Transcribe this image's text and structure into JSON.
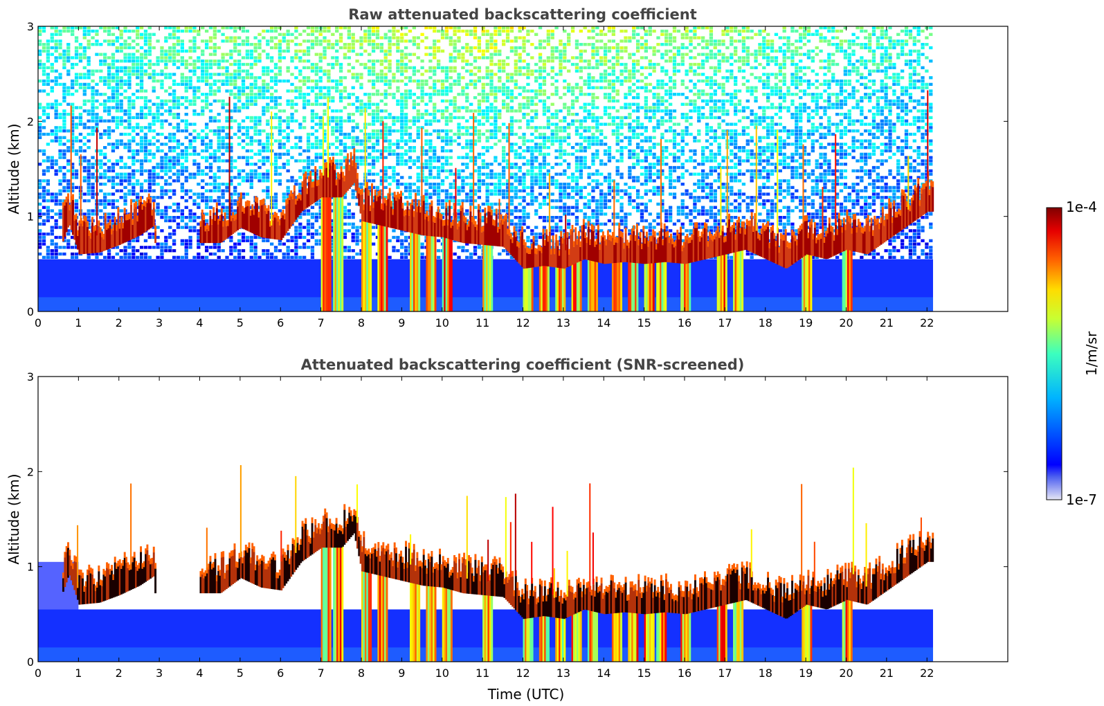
{
  "chart_data": [
    {
      "type": "heatmap",
      "title": "Raw attenuated backscattering coefficient",
      "xlabel": "",
      "ylabel": "Altitude (km)",
      "xlim": [
        0,
        24
      ],
      "ylim": [
        0,
        3
      ],
      "x_ticks": [
        "0",
        "1",
        "2",
        "3",
        "4",
        "5",
        "6",
        "7",
        "8",
        "9",
        "10",
        "11",
        "12",
        "13",
        "14",
        "15",
        "16",
        "17",
        "18",
        "19",
        "20",
        "21",
        "22"
      ],
      "y_ticks": [
        "0",
        "1",
        "2",
        "3"
      ],
      "data_end_time": 22.15,
      "screened": false,
      "cloud_base_km": [
        [
          0.0,
          0.0
        ],
        [
          0.75,
          0.92
        ],
        [
          1.0,
          0.6
        ],
        [
          1.5,
          0.62
        ],
        [
          2.0,
          0.7
        ],
        [
          2.5,
          0.8
        ],
        [
          2.85,
          0.9
        ],
        [
          3.0,
          0.0
        ],
        [
          4.0,
          0.72
        ],
        [
          4.5,
          0.72
        ],
        [
          5.0,
          0.88
        ],
        [
          5.5,
          0.78
        ],
        [
          6.0,
          0.75
        ],
        [
          6.5,
          1.05
        ],
        [
          7.0,
          1.2
        ],
        [
          7.5,
          1.2
        ],
        [
          7.8,
          1.35
        ],
        [
          8.0,
          0.95
        ],
        [
          8.5,
          0.9
        ],
        [
          9.0,
          0.85
        ],
        [
          9.5,
          0.8
        ],
        [
          10.0,
          0.78
        ],
        [
          10.5,
          0.72
        ],
        [
          11.0,
          0.7
        ],
        [
          11.5,
          0.68
        ],
        [
          12.0,
          0.45
        ],
        [
          12.5,
          0.48
        ],
        [
          13.0,
          0.45
        ],
        [
          13.5,
          0.55
        ],
        [
          14.0,
          0.5
        ],
        [
          14.5,
          0.52
        ],
        [
          15.0,
          0.5
        ],
        [
          15.5,
          0.52
        ],
        [
          16.0,
          0.5
        ],
        [
          16.5,
          0.55
        ],
        [
          17.0,
          0.6
        ],
        [
          17.5,
          0.65
        ],
        [
          18.0,
          0.55
        ],
        [
          18.5,
          0.45
        ],
        [
          19.0,
          0.6
        ],
        [
          19.5,
          0.55
        ],
        [
          20.0,
          0.65
        ],
        [
          20.5,
          0.6
        ],
        [
          21.0,
          0.75
        ],
        [
          21.5,
          0.9
        ],
        [
          22.0,
          1.05
        ]
      ],
      "precip_columns_utc": [
        7.0,
        7.3,
        8.0,
        8.4,
        9.2,
        9.6,
        10.0,
        11.0,
        12.0,
        12.4,
        12.8,
        13.2,
        13.6,
        14.2,
        14.6,
        15.0,
        15.3,
        15.9,
        16.8,
        17.2,
        18.9,
        19.9
      ]
    },
    {
      "type": "heatmap",
      "title": "Attenuated backscattering coefficient (SNR-screened)",
      "xlabel": "Time (UTC)",
      "ylabel": "Altitude (km)",
      "xlim": [
        0,
        24
      ],
      "ylim": [
        0,
        3
      ],
      "x_ticks": [
        "0",
        "1",
        "2",
        "3",
        "4",
        "5",
        "6",
        "7",
        "8",
        "9",
        "10",
        "11",
        "12",
        "13",
        "14",
        "15",
        "16",
        "17",
        "18",
        "19",
        "20",
        "21",
        "22"
      ],
      "y_ticks": [
        "0",
        "1",
        "2",
        "3"
      ],
      "data_end_time": 22.15,
      "screened": true
    }
  ],
  "colorbar": {
    "label": "1/m/sr",
    "max_label": "1e-4",
    "min_label": "1e-7",
    "colormap": "jet"
  }
}
